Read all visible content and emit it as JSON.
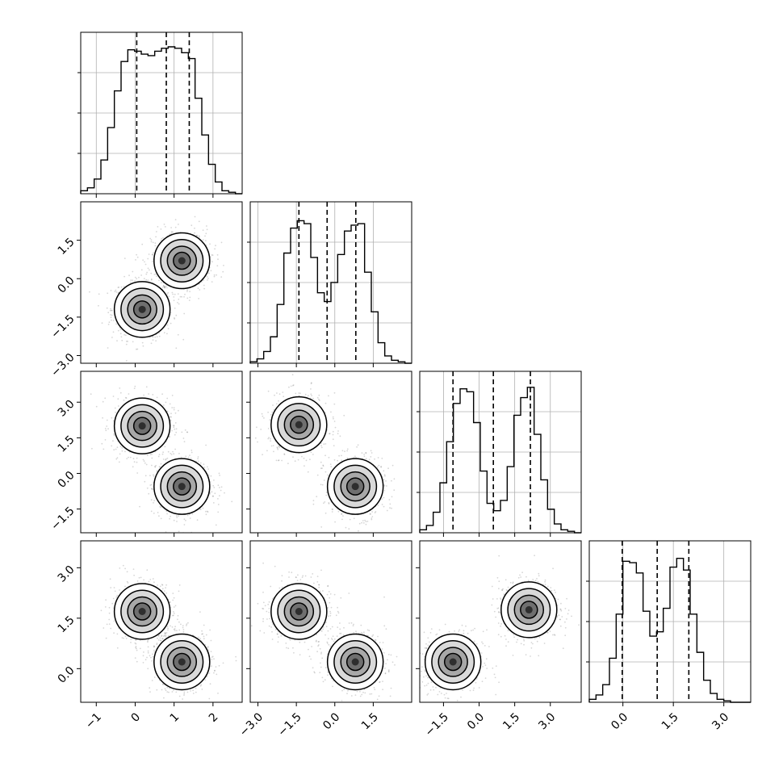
{
  "chart_data": {
    "type": "corner",
    "grid": true,
    "parameters": [
      {
        "tick_values": [
          -1,
          0,
          1,
          2
        ],
        "tick_labels": [
          "−1",
          "0",
          "1",
          "2"
        ],
        "range": [
          -1.4,
          2.75
        ]
      },
      {
        "tick_values": [
          -3.0,
          -1.5,
          0.0,
          1.5
        ],
        "tick_labels": [
          "−3.0",
          "−1.5",
          "0.0",
          "1.5"
        ],
        "range": [
          -3.3,
          3.0
        ]
      },
      {
        "tick_values": [
          -1.5,
          0.0,
          1.5,
          3.0
        ],
        "tick_labels": [
          "−1.5",
          "0.0",
          "1.5",
          "3.0"
        ],
        "range": [
          -2.5,
          4.3
        ]
      },
      {
        "tick_values": [
          0.0,
          1.5,
          3.0
        ],
        "tick_labels": [
          "0.0",
          "1.5",
          "3.0"
        ],
        "range": [
          -1.0,
          3.8
        ]
      }
    ],
    "histograms": [
      {
        "bins": [
          -1.4,
          2.75
        ],
        "counts": [
          0.02,
          0.04,
          0.1,
          0.23,
          0.45,
          0.7,
          0.9,
          0.98,
          0.97,
          0.95,
          0.94,
          0.97,
          0.99,
          1.0,
          0.99,
          0.96,
          0.92,
          0.65,
          0.4,
          0.2,
          0.08,
          0.02,
          0.01,
          0.0
        ]
      },
      {
        "bins": [
          -3.3,
          3.0
        ],
        "counts": [
          0.01,
          0.03,
          0.08,
          0.18,
          0.4,
          0.75,
          0.92,
          0.97,
          0.95,
          0.72,
          0.48,
          0.42,
          0.55,
          0.74,
          0.9,
          0.94,
          0.95,
          0.62,
          0.35,
          0.14,
          0.05,
          0.02,
          0.01,
          0.0
        ]
      },
      {
        "bins": [
          -2.5,
          4.3
        ],
        "counts": [
          0.02,
          0.05,
          0.14,
          0.34,
          0.62,
          0.88,
          0.98,
          0.96,
          0.75,
          0.42,
          0.2,
          0.15,
          0.22,
          0.45,
          0.8,
          0.92,
          0.99,
          0.67,
          0.36,
          0.16,
          0.06,
          0.02,
          0.01,
          0.0
        ]
      },
      {
        "bins": [
          -1.0,
          3.8
        ],
        "counts": [
          0.02,
          0.05,
          0.12,
          0.3,
          0.6,
          0.96,
          0.95,
          0.88,
          0.62,
          0.45,
          0.48,
          0.64,
          0.92,
          0.98,
          0.9,
          0.6,
          0.34,
          0.15,
          0.06,
          0.02,
          0.01,
          0.0,
          0.0,
          0.0
        ]
      }
    ],
    "quantiles": [
      [
        0.04,
        0.8,
        1.39
      ],
      [
        -1.4,
        -0.3,
        0.82
      ],
      [
        -1.1,
        0.6,
        2.16
      ],
      [
        -0.02,
        1.02,
        1.96
      ]
    ],
    "scatter_panels": [
      {
        "x": 0,
        "y": 1,
        "modes": [
          [
            0.18,
            -1.2
          ],
          [
            1.2,
            0.7
          ]
        ]
      },
      {
        "x": 0,
        "y": 2,
        "modes": [
          [
            0.18,
            2.0
          ],
          [
            1.2,
            -0.55
          ]
        ]
      },
      {
        "x": 1,
        "y": 2,
        "modes": [
          [
            -1.4,
            2.05
          ],
          [
            0.8,
            -0.55
          ]
        ]
      },
      {
        "x": 0,
        "y": 3,
        "modes": [
          [
            0.18,
            1.7
          ],
          [
            1.2,
            0.2
          ]
        ]
      },
      {
        "x": 1,
        "y": 3,
        "modes": [
          [
            -1.4,
            1.7
          ],
          [
            0.8,
            0.2
          ]
        ]
      },
      {
        "x": 2,
        "y": 3,
        "modes": [
          [
            -1.1,
            0.2
          ],
          [
            2.1,
            1.75
          ]
        ]
      }
    ]
  }
}
